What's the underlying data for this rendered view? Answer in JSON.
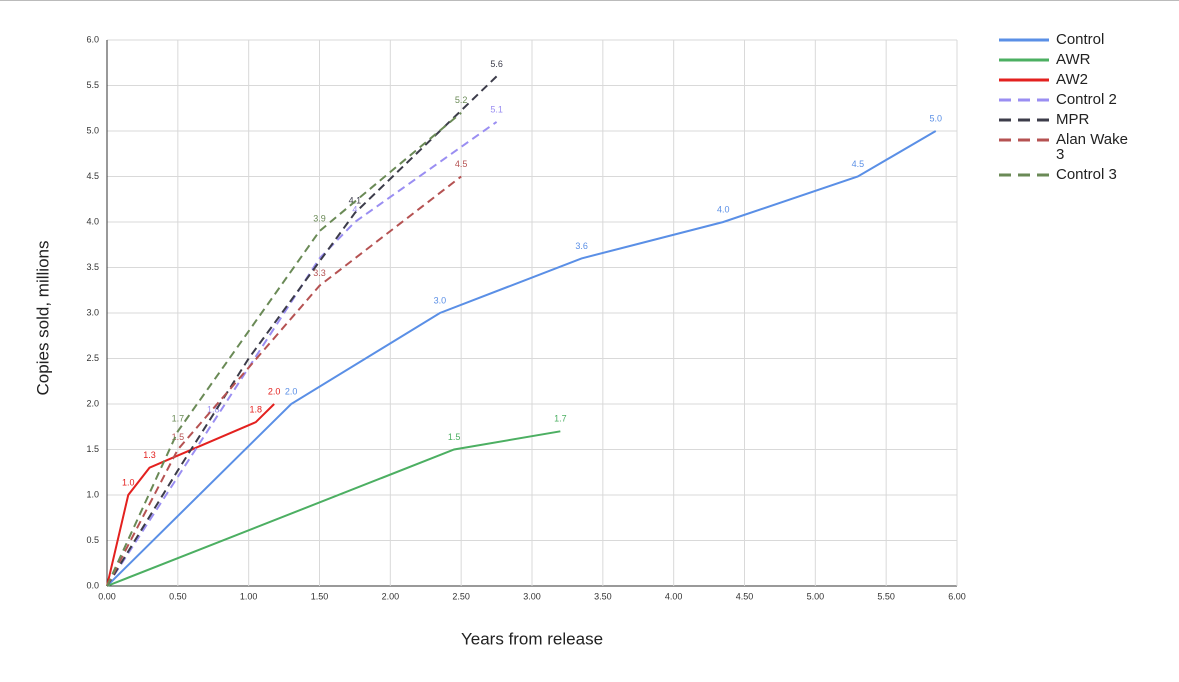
{
  "chart_data": {
    "type": "line",
    "x_label": "Years from release",
    "y_label": "Copies sold, millions",
    "xlim": [
      0,
      6
    ],
    "ylim": [
      0,
      6
    ],
    "xticks": [
      {
        "value": 0,
        "label": "0.00"
      },
      {
        "value": 0.5,
        "label": "0.50"
      },
      {
        "value": 1,
        "label": "1.00"
      },
      {
        "value": 1.5,
        "label": "1.50"
      },
      {
        "value": 2,
        "label": "2.00"
      },
      {
        "value": 2.5,
        "label": "2.50"
      },
      {
        "value": 3,
        "label": "3.00"
      },
      {
        "value": 3.5,
        "label": "3.50"
      },
      {
        "value": 4,
        "label": "4.00"
      },
      {
        "value": 4.5,
        "label": "4.50"
      },
      {
        "value": 5,
        "label": "5.00"
      },
      {
        "value": 5.5,
        "label": "5.50"
      },
      {
        "value": 6,
        "label": "6.00"
      }
    ],
    "yticks": [
      {
        "value": 0,
        "label": "0.0"
      },
      {
        "value": 0.5,
        "label": "0.5"
      },
      {
        "value": 1,
        "label": "1.0"
      },
      {
        "value": 1.5,
        "label": "1.5"
      },
      {
        "value": 2,
        "label": "2.0"
      },
      {
        "value": 2.5,
        "label": "2.5"
      },
      {
        "value": 3,
        "label": "3.0"
      },
      {
        "value": 3.5,
        "label": "3.5"
      },
      {
        "value": 4,
        "label": "4.0"
      },
      {
        "value": 4.5,
        "label": "4.5"
      },
      {
        "value": 5,
        "label": "5.0"
      },
      {
        "value": 5.5,
        "label": "5.5"
      },
      {
        "value": 6,
        "label": "6.0"
      }
    ],
    "grid": true,
    "legend": "right",
    "series": [
      {
        "name": "Control",
        "color": "#5a8fe6",
        "line_style": "solid",
        "x": [
          0,
          1.3,
          2.35,
          3.35,
          4.35,
          5.3,
          5.85
        ],
        "values": [
          0,
          2.0,
          3.0,
          3.6,
          4.0,
          4.5,
          5.0
        ],
        "value_labels": [
          null,
          "2.0",
          "3.0",
          "3.6",
          "4.0",
          "4.5",
          "5.0"
        ]
      },
      {
        "name": "AWR",
        "color": "#4caf62",
        "line_style": "solid",
        "x": [
          0,
          2.45,
          3.2
        ],
        "values": [
          0,
          1.5,
          1.7
        ],
        "value_labels": [
          null,
          "1.5",
          "1.7"
        ]
      },
      {
        "name": "AW2",
        "color": "#e3211f",
        "line_style": "solid",
        "x": [
          0,
          0.15,
          0.3,
          0.45,
          1.05,
          1.18
        ],
        "values": [
          0,
          1.0,
          1.3,
          1.4,
          1.8,
          2.0
        ],
        "value_labels": [
          null,
          "1.0",
          "1.3",
          null,
          "1.8",
          "2.0"
        ]
      },
      {
        "name": "Control 2",
        "color": "#9a8ef2",
        "line_style": "dashed",
        "x": [
          0,
          0.75,
          1.5,
          1.75,
          2.75
        ],
        "values": [
          0,
          1.8,
          3.6,
          4,
          5.1
        ],
        "value_labels": [
          null,
          "1.8",
          null,
          "4",
          "5.1"
        ]
      },
      {
        "name": "MPR",
        "color": "#3c3c4a",
        "line_style": "dashed",
        "x": [
          0,
          0.5,
          1.0,
          1.75,
          2.75
        ],
        "values": [
          0,
          1.27,
          2.5,
          4.1,
          5.6
        ],
        "value_labels": [
          null,
          null,
          null,
          "4.1",
          "5.6"
        ]
      },
      {
        "name": "Alan Wake 3",
        "color": "#b55252",
        "line_style": "dashed",
        "x": [
          0,
          0.5,
          1.5,
          2.5
        ],
        "values": [
          0,
          1.5,
          3.3,
          4.5
        ],
        "value_labels": [
          null,
          "1.5",
          "3.3",
          "4.5"
        ]
      },
      {
        "name": "Control 3",
        "color": "#6a8a56",
        "line_style": "dashed",
        "x": [
          0,
          0.5,
          1.5,
          2.5
        ],
        "values": [
          0,
          1.7,
          3.9,
          5.2
        ],
        "value_labels": [
          null,
          "1.7",
          "3.9",
          "5.2"
        ]
      }
    ]
  }
}
